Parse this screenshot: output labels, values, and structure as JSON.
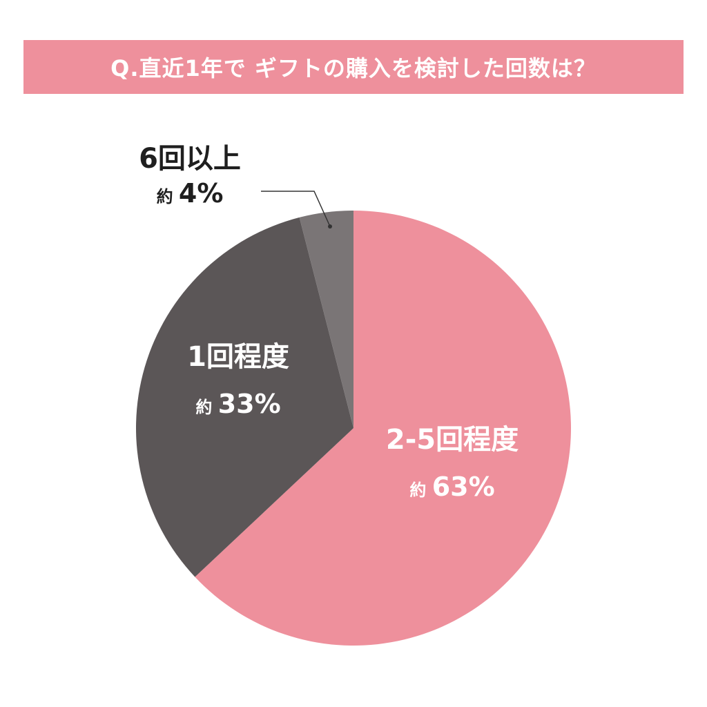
{
  "title": "Q.直近1年で ギフトの購入を検討した回数は？",
  "chart_data": {
    "type": "pie",
    "title": "Q.直近1年で ギフトの購入を検討した回数は？",
    "slices": [
      {
        "label": "2-5回程度",
        "prefix": "約",
        "value": 63,
        "display": "63%",
        "color": "#ee909c",
        "text_color": "#ffffff"
      },
      {
        "label": "1回程度",
        "prefix": "約",
        "value": 33,
        "display": "33%",
        "color": "#5b5657",
        "text_color": "#ffffff"
      },
      {
        "label": "6回以上",
        "prefix": "約",
        "value": 4,
        "display": "4%",
        "color": "#7a7576",
        "text_color": "#1f1f1f"
      }
    ],
    "start": "12 o'clock",
    "direction": "clockwise"
  }
}
